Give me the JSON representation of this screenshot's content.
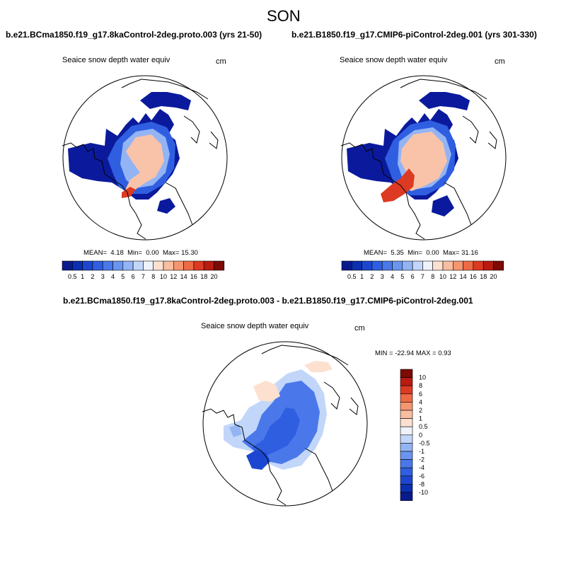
{
  "season": "SON",
  "panels": [
    {
      "case_title": "b.e21.BCma1850.f19_g17.8kaControl-2deg.proto.003 (yrs 21-50)",
      "variable": "Seaice snow depth water equiv",
      "units": "cm",
      "stats": {
        "mean_label": "MEAN=",
        "mean": "4.18",
        "min_label": "Min=",
        "min": "0.00",
        "max_label": "Max=",
        "max": "15.30"
      }
    },
    {
      "case_title": "b.e21.B1850.f19_g17.CMIP6-piControl-2deg.001 (yrs 301-330)",
      "variable": "Seaice snow depth water equiv",
      "units": "cm",
      "stats": {
        "mean_label": "MEAN=",
        "mean": "5.35",
        "min_label": "Min=",
        "min": "0.00",
        "max_label": "Max=",
        "max": "31.16"
      }
    }
  ],
  "diff_panel": {
    "case_title": "b.e21.BCma1850.f19_g17.8kaControl-2deg.proto.003 - b.e21.B1850.f19_g17.CMIP6-piControl-2deg.001",
    "variable": "Seaice snow depth water equiv",
    "units": "cm",
    "minmax_text": "MIN = -22.94 MAX =   0.93"
  },
  "abs_colorbar": {
    "ticks": [
      "0.5",
      "1",
      "2",
      "3",
      "4",
      "5",
      "6",
      "7",
      "8",
      "10",
      "12",
      "14",
      "16",
      "18",
      "20"
    ],
    "colors": [
      "#0a1a8c",
      "#0b2fb0",
      "#1d46d0",
      "#2f5fe0",
      "#4a78ea",
      "#6a94ef",
      "#93b4f4",
      "#c2d6fa",
      "#eef2fb",
      "#fde0d0",
      "#f9bda0",
      "#f59670",
      "#ee6a45",
      "#dc3a22",
      "#b81b10",
      "#7d0a05"
    ]
  },
  "diff_colorbar": {
    "ticks": [
      "10",
      "8",
      "6",
      "4",
      "2",
      "1",
      "0.5",
      "0",
      "-0.5",
      "-1",
      "-2",
      "-4",
      "-6",
      "-8",
      "-10"
    ],
    "colors": [
      "#7d0a05",
      "#b81b10",
      "#dc3a22",
      "#ee6a45",
      "#f59670",
      "#f9bda0",
      "#fde0d0",
      "#eef2fb",
      "#c2d6fa",
      "#93b4f4",
      "#6a94ef",
      "#4a78ea",
      "#2f5fe0",
      "#1d46d0",
      "#0b2fb0",
      "#0a1a8c"
    ]
  },
  "colors": {
    "dark_blue": "#0b1a9c",
    "mid_blue": "#2f5fe0",
    "light_blue": "#93b4f4",
    "peach": "#f9c3aa",
    "red": "#dc3a22"
  }
}
